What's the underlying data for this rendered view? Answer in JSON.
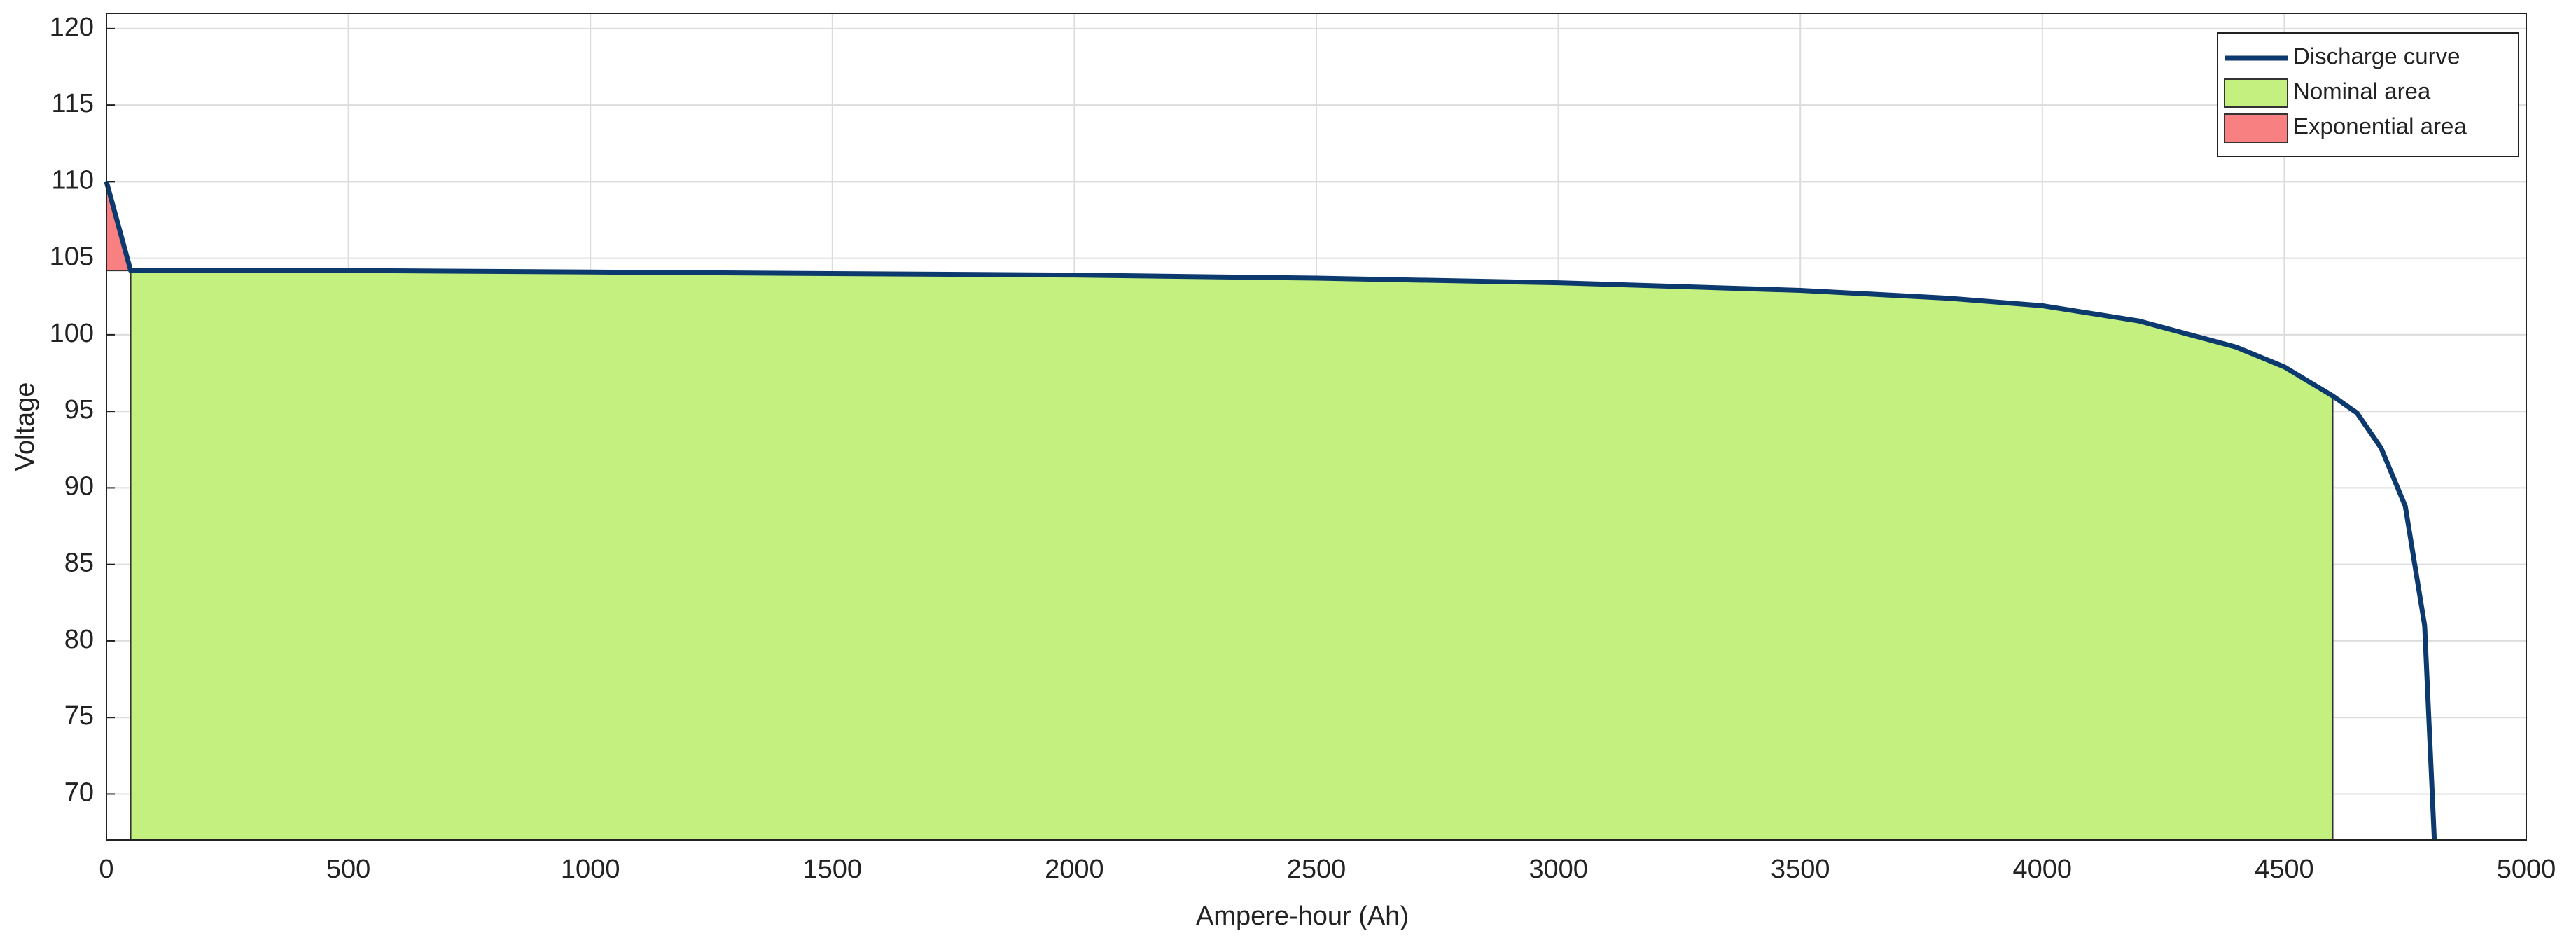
{
  "chart_data": {
    "type": "line",
    "xlabel": "Ampere-hour (Ah)",
    "ylabel": "Voltage",
    "xlim": [
      0,
      5000
    ],
    "xticks": [
      0,
      500,
      1000,
      1500,
      2000,
      2500,
      3000,
      3500,
      4000,
      4500,
      5000
    ],
    "ylim": [
      67,
      121
    ],
    "yticks": [
      70,
      75,
      80,
      85,
      90,
      95,
      100,
      105,
      110,
      115,
      120
    ],
    "grid": true,
    "legend": "upper right",
    "series": [
      {
        "name": "Discharge curve",
        "kind": "line",
        "color": "#0d3a6e",
        "x": [
          0,
          50,
          500,
          1000,
          1500,
          2000,
          2500,
          3000,
          3500,
          3800,
          4000,
          4200,
          4400,
          4500,
          4600,
          4650,
          4700,
          4750,
          4790,
          4810
        ],
        "values": [
          110,
          104.2,
          104.2,
          104.1,
          104.0,
          103.9,
          103.7,
          103.4,
          102.9,
          102.4,
          101.9,
          100.9,
          99.2,
          97.9,
          96.0,
          94.9,
          92.6,
          88.8,
          81,
          67
        ]
      },
      {
        "name": "Nominal area",
        "kind": "area",
        "color": "#c3f07f",
        "x": [
          50,
          500,
          1000,
          1500,
          2000,
          2500,
          3000,
          3500,
          3800,
          4000,
          4200,
          4400,
          4500,
          4600,
          4600,
          50
        ],
        "values": [
          104.2,
          104.2,
          104.1,
          104.0,
          103.9,
          103.7,
          103.4,
          102.9,
          102.4,
          101.9,
          100.9,
          99.2,
          97.9,
          96.0,
          67,
          67
        ]
      },
      {
        "name": "Exponential area",
        "kind": "area",
        "color": "#f88080",
        "x": [
          0,
          50,
          0
        ],
        "values": [
          110,
          104.2,
          104.2
        ]
      }
    ]
  }
}
